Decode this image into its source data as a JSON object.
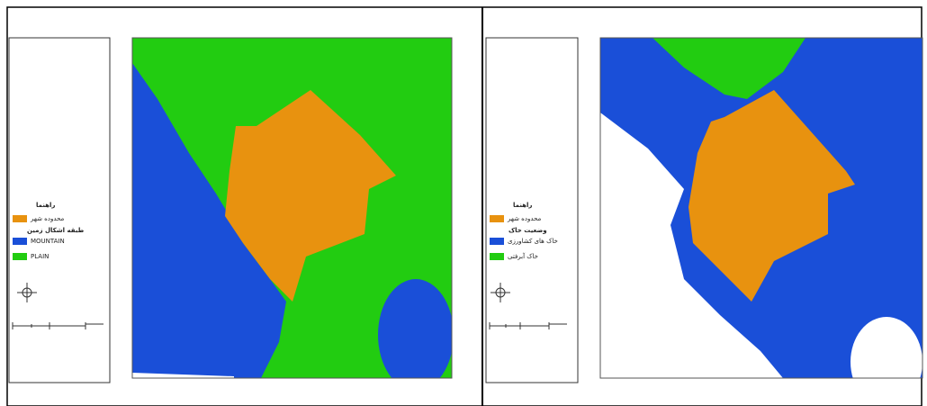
{
  "panels": [
    {
      "legend": {
        "title": "راهنما",
        "items": [
          "محدوده شهر"
        ],
        "heading": "طبقه اشکال زمین",
        "classes": [
          "MOUNTAIN",
          "PLAIN"
        ]
      }
    },
    {
      "legend": {
        "title": "راهنما",
        "items": [
          "محدوده شهر"
        ],
        "heading": "وضعیت خاک",
        "classes": [
          "خاک های کشاورزی",
          "خاک آبرفتی"
        ]
      }
    }
  ]
}
